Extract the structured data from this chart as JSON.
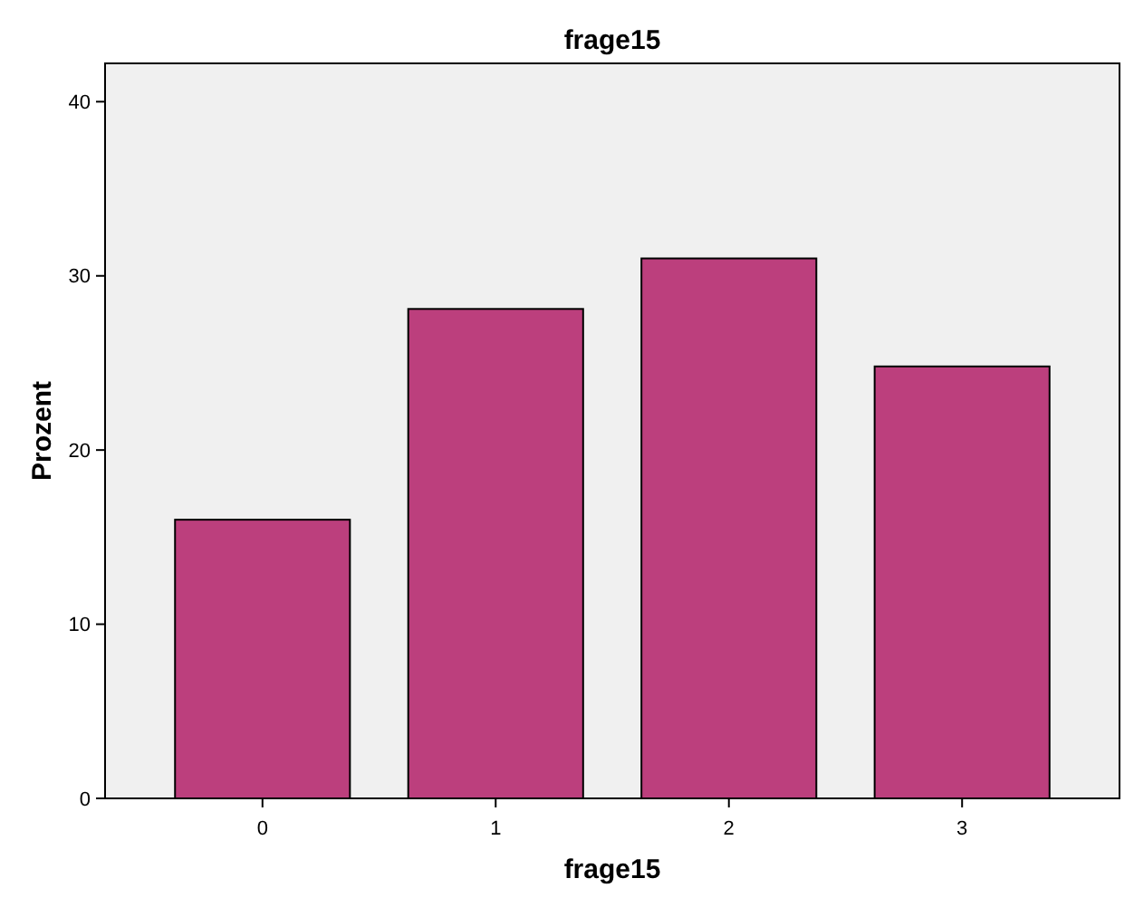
{
  "chart_data": {
    "type": "bar",
    "title": "frage15",
    "xlabel": "frage15",
    "ylabel": "Prozent",
    "categories": [
      "0",
      "1",
      "2",
      "3"
    ],
    "values": [
      16.0,
      28.1,
      31.0,
      24.8
    ],
    "color": "#bc3f7d",
    "ylim": [
      0,
      42.2
    ],
    "yticks": [
      0,
      10,
      20,
      30,
      40
    ],
    "grid": false
  }
}
